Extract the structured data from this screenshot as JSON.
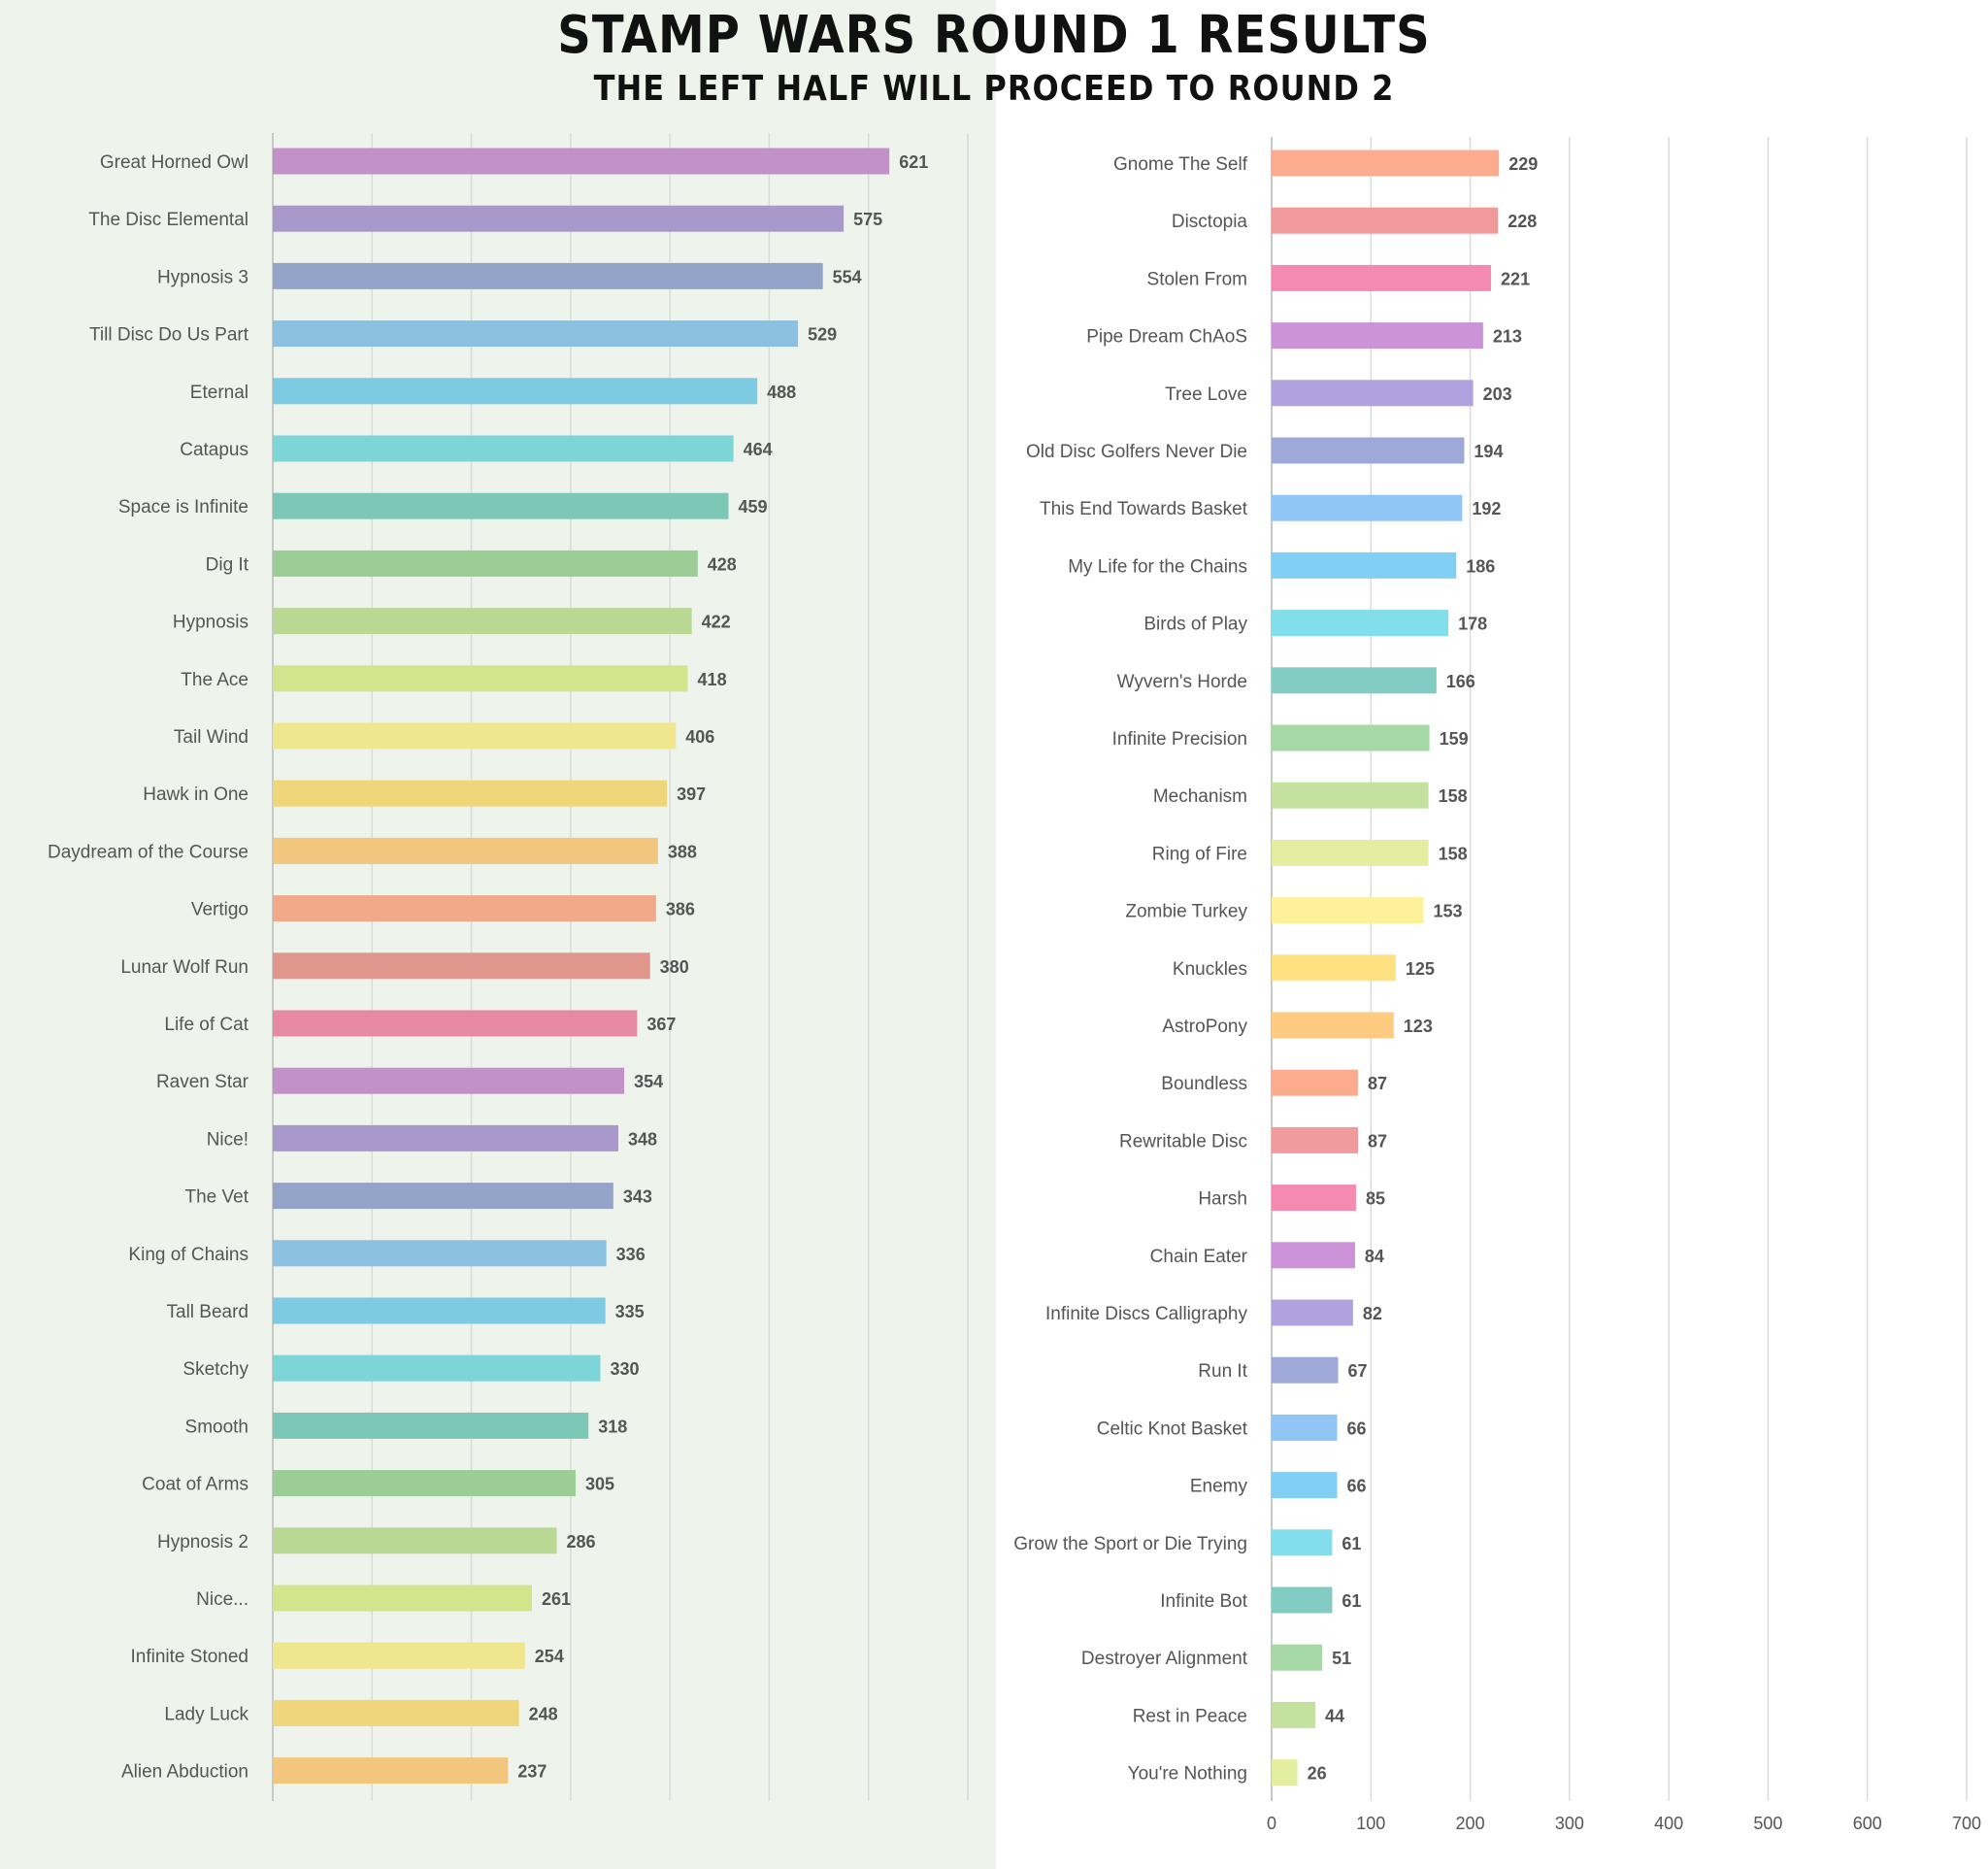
{
  "header": {
    "title": "STAMP WARS ROUND 1 RESULTS",
    "subtitle": "THE LEFT HALF WILL PROCEED TO ROUND 2"
  },
  "chart_data": [
    {
      "type": "bar",
      "orientation": "horizontal",
      "title": "",
      "xlabel": "",
      "ylabel": "",
      "xlim": [
        0,
        700
      ],
      "grid": true,
      "categories": [
        "Great Horned Owl",
        "The Disc Elemental",
        "Hypnosis 3",
        "Till Disc Do Us Part",
        "Eternal",
        "Catapus",
        "Space is Infinite",
        "Dig It",
        "Hypnosis",
        "The Ace",
        "Tail Wind",
        "Hawk in One",
        "Daydream of the Course",
        "Vertigo",
        "Lunar Wolf Run",
        "Life of Cat",
        "Raven Star",
        "Nice!",
        "The Vet",
        "King of Chains",
        "Tall Beard",
        "Sketchy",
        "Smooth",
        "Coat of Arms",
        "Hypnosis 2",
        "Nice...",
        "Infinite Stoned",
        "Lady Luck",
        "Alien Abduction"
      ],
      "values": [
        621,
        575,
        554,
        529,
        488,
        464,
        459,
        428,
        422,
        418,
        406,
        397,
        388,
        386,
        380,
        367,
        354,
        348,
        343,
        336,
        335,
        330,
        318,
        305,
        286,
        261,
        254,
        248,
        237
      ],
      "colors": [
        "#c291c8",
        "#a999cb",
        "#94a4c9",
        "#8bc1e0",
        "#7ccbe3",
        "#7dd5d8",
        "#7cc7b6",
        "#9ccd97",
        "#b8d894",
        "#d4e48c",
        "#efe68e",
        "#f0d67a",
        "#f2c67c",
        "#f1a989",
        "#e0968d",
        "#e68aa2",
        "#c291c8",
        "#a999cb",
        "#94a4c9",
        "#8bc1e0",
        "#7ccbe3",
        "#7dd5d8",
        "#7cc7b6",
        "#9ccd97",
        "#b8d894",
        "#d4e48c",
        "#efe68e",
        "#f0d67a",
        "#f2c67c"
      ]
    },
    {
      "type": "bar",
      "orientation": "horizontal",
      "title": "",
      "xlabel": "",
      "ylabel": "",
      "xlim": [
        0,
        700
      ],
      "xticks": [
        0,
        100,
        200,
        300,
        400,
        500,
        600,
        700
      ],
      "grid": true,
      "categories": [
        "Gnome The Self",
        "Disctopia",
        "Stolen From",
        "Pipe Dream ChAoS",
        "Tree Love",
        "Old Disc Golfers Never Die",
        "This End Towards Basket",
        "My Life for the Chains",
        "Birds of Play",
        "Wyvern's Horde",
        "Infinite Precision",
        "Mechanism",
        "Ring of Fire",
        "Zombie Turkey",
        "Knuckles",
        "AstroPony",
        "Boundless",
        "Rewritable Disc",
        "Harsh",
        "Chain Eater",
        "Infinite Discs Calligraphy",
        "Run It",
        "Celtic Knot Basket",
        "Enemy",
        "Grow the Sport or Die Trying",
        "Infinite Bot",
        "Destroyer Alignment",
        "Rest in Peace",
        "You're Nothing"
      ],
      "values": [
        229,
        228,
        221,
        213,
        203,
        194,
        192,
        186,
        178,
        166,
        159,
        158,
        158,
        153,
        125,
        123,
        87,
        87,
        85,
        84,
        82,
        67,
        66,
        66,
        61,
        61,
        51,
        44,
        26
      ],
      "colors": [
        "#fcab8f",
        "#f09a9c",
        "#f48ab0",
        "#cc93d8",
        "#b1a1de",
        "#9ea9da",
        "#90c6f6",
        "#82cff4",
        "#81deea",
        "#82ccc4",
        "#a6d8a5",
        "#c4e1a0",
        "#e3eea0",
        "#fdf29a",
        "#fde07f",
        "#fecb81",
        "#fcab8f",
        "#f09a9c",
        "#f48ab0",
        "#cc93d8",
        "#b1a1de",
        "#9ea9da",
        "#90c6f6",
        "#82cff4",
        "#81deea",
        "#82ccc4",
        "#a6d8a5",
        "#c4e1a0",
        "#e3eea0"
      ]
    }
  ]
}
